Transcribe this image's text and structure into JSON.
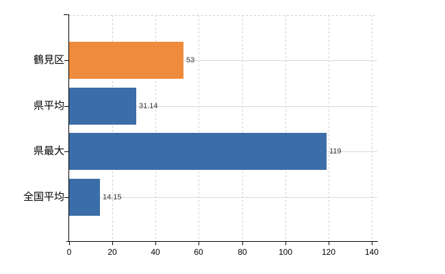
{
  "chart_data": {
    "type": "bar",
    "orientation": "horizontal",
    "title": "",
    "xlabel": "",
    "ylabel": "",
    "categories": [
      "鶴見区",
      "県平均",
      "県最大",
      "全国平均"
    ],
    "values": [
      53,
      31.14,
      119,
      14.15
    ],
    "value_labels": [
      "53",
      "31.14",
      "119",
      "14.15"
    ],
    "bar_colors": [
      "#ef8b3c",
      "#3b6da8",
      "#3b6da8",
      "#3b6da8"
    ],
    "x_ticks": [
      0,
      20,
      40,
      60,
      80,
      100,
      120,
      140
    ],
    "x_tick_labels": [
      "0",
      "20",
      "40",
      "60",
      "80",
      "100",
      "120",
      "140"
    ],
    "xlim": [
      0,
      140
    ],
    "grid": true,
    "legend_position": "none"
  },
  "colors": {
    "background": "#ffffff",
    "bar_highlight": "#ef8b3c",
    "bar_default": "#3b6da8",
    "grid_line": "#d9d9d9",
    "axis_line": "#000000",
    "value_label_text": "#333333",
    "tick_label_text": "#000000"
  }
}
